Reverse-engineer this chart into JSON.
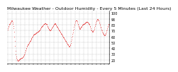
{
  "title": "Milwaukee Weather - Outdoor Humidity - Every 5 Minutes (Last 24 Hours)",
  "title_fontsize": 4.5,
  "bg_color": "#ffffff",
  "line_color": "#dd0000",
  "grid_color": "#bbbbbb",
  "yticks": [
    20,
    30,
    40,
    50,
    60,
    70,
    80,
    90,
    100
  ],
  "ylim": [
    14,
    104
  ],
  "humidity_values": [
    72,
    74,
    76,
    78,
    80,
    81,
    82,
    83,
    84,
    85,
    86,
    87,
    87,
    86,
    84,
    82,
    78,
    74,
    68,
    60,
    52,
    44,
    36,
    30,
    26,
    23,
    21,
    20,
    19,
    19,
    19,
    20,
    20,
    21,
    21,
    22,
    22,
    22,
    23,
    23,
    24,
    24,
    25,
    25,
    26,
    27,
    28,
    29,
    31,
    33,
    35,
    37,
    39,
    41,
    43,
    44,
    45,
    46,
    47,
    48,
    49,
    50,
    51,
    52,
    53,
    54,
    55,
    56,
    57,
    58,
    59,
    60,
    61,
    62,
    63,
    63,
    64,
    64,
    65,
    65,
    66,
    66,
    67,
    67,
    67,
    68,
    68,
    68,
    69,
    69,
    70,
    71,
    72,
    73,
    74,
    75,
    76,
    77,
    78,
    78,
    79,
    80,
    80,
    81,
    82,
    82,
    83,
    83,
    83,
    82,
    82,
    81,
    80,
    78,
    77,
    75,
    74,
    73,
    72,
    72,
    71,
    71,
    71,
    72,
    73,
    74,
    75,
    76,
    77,
    78,
    79,
    80,
    81,
    82,
    83,
    83,
    82,
    81,
    80,
    79,
    78,
    77,
    76,
    75,
    74,
    73,
    72,
    71,
    70,
    69,
    68,
    67,
    66,
    65,
    64,
    63,
    62,
    61,
    60,
    59,
    58,
    57,
    56,
    55,
    54,
    53,
    52,
    51,
    50,
    49,
    48,
    47,
    46,
    45,
    44,
    43,
    43,
    44,
    45,
    47,
    49,
    52,
    55,
    58,
    61,
    64,
    67,
    70,
    73,
    76,
    79,
    82,
    84,
    86,
    87,
    88,
    88,
    87,
    86,
    84,
    82,
    80,
    78,
    76,
    75,
    74,
    73,
    73,
    74,
    75,
    76,
    77,
    78,
    79,
    80,
    80,
    81,
    81,
    82,
    82,
    83,
    83,
    84,
    84,
    85,
    85,
    85,
    85,
    85,
    84,
    84,
    83,
    82,
    81,
    80,
    78,
    76,
    74,
    72,
    71,
    70,
    69,
    68,
    68,
    69,
    70,
    71,
    73,
    75,
    78,
    80,
    82,
    84,
    86,
    88,
    89,
    90,
    90,
    89,
    88,
    87,
    85,
    83,
    81,
    79,
    77,
    75,
    73,
    71,
    70,
    68,
    67,
    66,
    65,
    64,
    63,
    62,
    62,
    62,
    63,
    64,
    66,
    68,
    70,
    72,
    74,
    76,
    78,
    80,
    82
  ],
  "num_xticks": 25,
  "xtick_fontsize": 3.0,
  "ytick_fontsize": 3.5
}
